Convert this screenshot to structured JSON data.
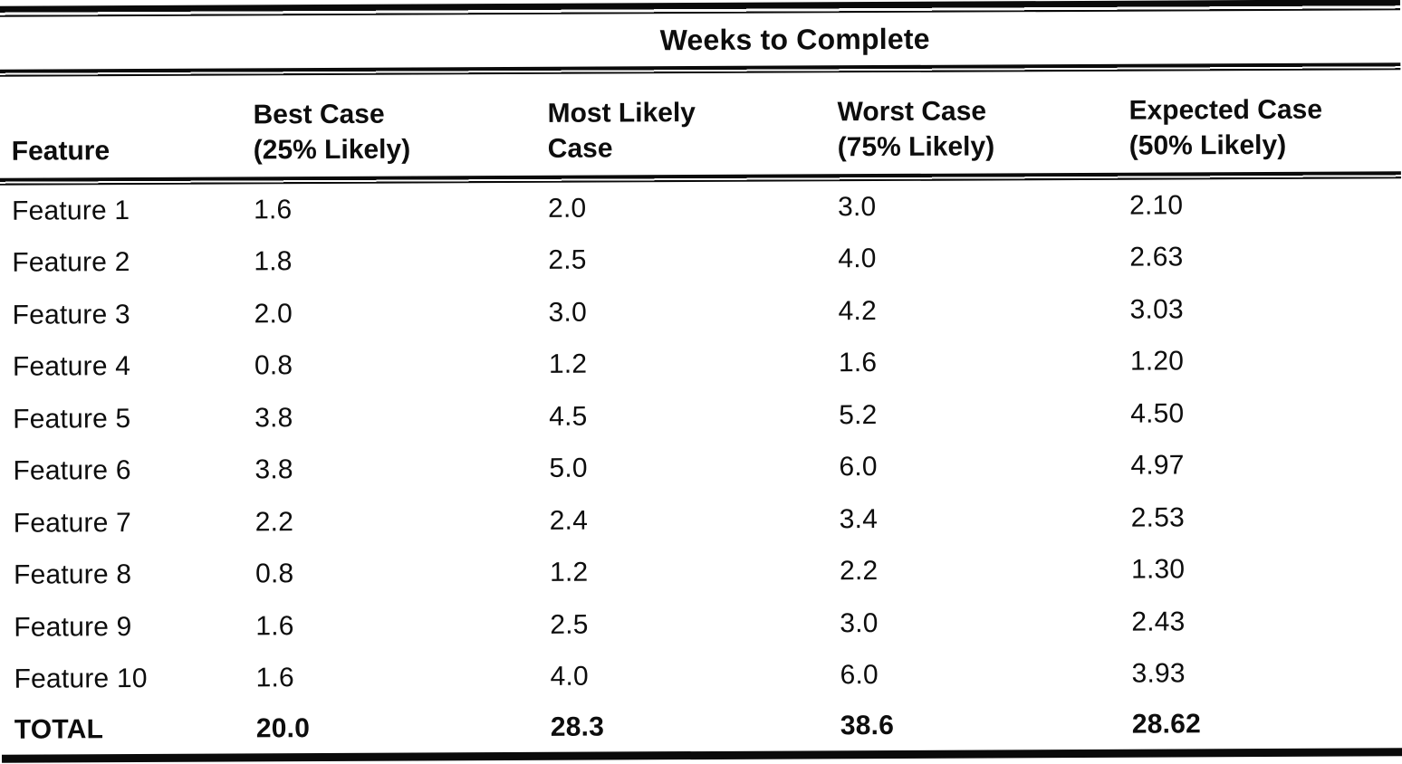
{
  "title": "Weeks to Complete",
  "table": {
    "spanning_header": "Weeks to Complete",
    "columns": [
      {
        "line1": "Feature",
        "line2": ""
      },
      {
        "line1": "Best Case",
        "line2": "(25% Likely)"
      },
      {
        "line1": "Most Likely",
        "line2": "Case"
      },
      {
        "line1": "Worst Case",
        "line2": "(75% Likely)"
      },
      {
        "line1": "Expected Case",
        "line2": "(50% Likely)"
      }
    ],
    "rows": [
      {
        "feature": "Feature 1",
        "best_case": "1.6",
        "most_likely": "2.0",
        "worst_case": "3.0",
        "expected": "2.10"
      },
      {
        "feature": "Feature 2",
        "best_case": "1.8",
        "most_likely": "2.5",
        "worst_case": "4.0",
        "expected": "2.63"
      },
      {
        "feature": "Feature 3",
        "best_case": "2.0",
        "most_likely": "3.0",
        "worst_case": "4.2",
        "expected": "3.03"
      },
      {
        "feature": "Feature 4",
        "best_case": "0.8",
        "most_likely": "1.2",
        "worst_case": "1.6",
        "expected": "1.20"
      },
      {
        "feature": "Feature 5",
        "best_case": "3.8",
        "most_likely": "4.5",
        "worst_case": "5.2",
        "expected": "4.50"
      },
      {
        "feature": "Feature 6",
        "best_case": "3.8",
        "most_likely": "5.0",
        "worst_case": "6.0",
        "expected": "4.97"
      },
      {
        "feature": "Feature 7",
        "best_case": "2.2",
        "most_likely": "2.4",
        "worst_case": "3.4",
        "expected": "2.53"
      },
      {
        "feature": "Feature 8",
        "best_case": "0.8",
        "most_likely": "1.2",
        "worst_case": "2.2",
        "expected": "1.30"
      },
      {
        "feature": "Feature 9",
        "best_case": "1.6",
        "most_likely": "2.5",
        "worst_case": "3.0",
        "expected": "2.43"
      },
      {
        "feature": "Feature 10",
        "best_case": "1.6",
        "most_likely": "4.0",
        "worst_case": "6.0",
        "expected": "3.93"
      }
    ],
    "total": {
      "label": "TOTAL",
      "best_case": "20.0",
      "most_likely": "28.3",
      "worst_case": "38.6",
      "expected": "28.62"
    }
  },
  "colors": {
    "ink": "#0d0d0d",
    "paper": "#ffffff"
  }
}
